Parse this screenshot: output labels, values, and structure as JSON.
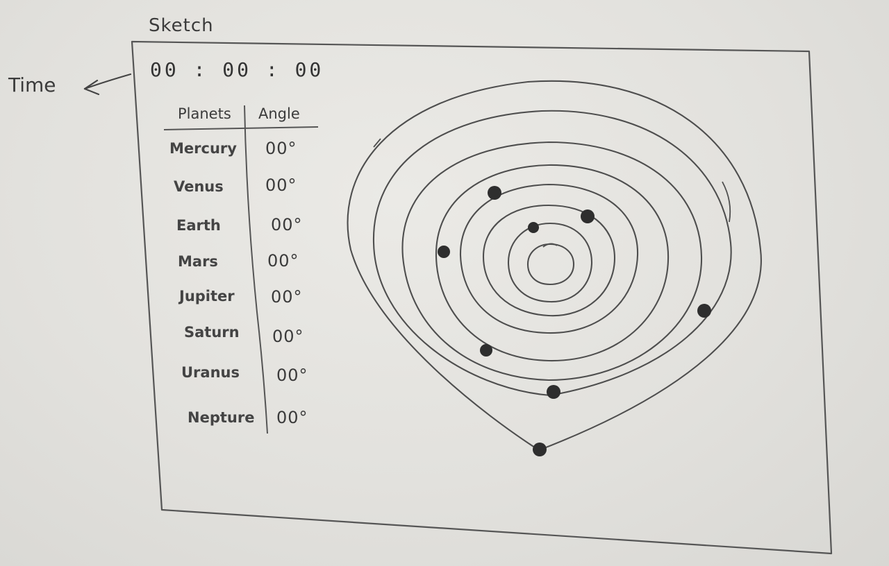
{
  "sketch_title": "Sketch",
  "time_label": "Time",
  "time_value": "00 : 00 : 00",
  "table": {
    "header_planets": "Planets",
    "header_angle": "Angle",
    "rows": [
      {
        "planet": "Mercury",
        "angle": "00°"
      },
      {
        "planet": "Venus",
        "angle": "00°"
      },
      {
        "planet": "Earth",
        "angle": "00°"
      },
      {
        "planet": "Mars",
        "angle": "00°"
      },
      {
        "planet": "Jupiter",
        "angle": "00°"
      },
      {
        "planet": "Saturn",
        "angle": "00°"
      },
      {
        "planet": "Uranus",
        "angle": "00°"
      },
      {
        "planet": "Nepture",
        "angle": "00°"
      }
    ]
  },
  "colors": {
    "pencil": "#4a4a4a",
    "planet_dot": "#2e2e2e"
  }
}
